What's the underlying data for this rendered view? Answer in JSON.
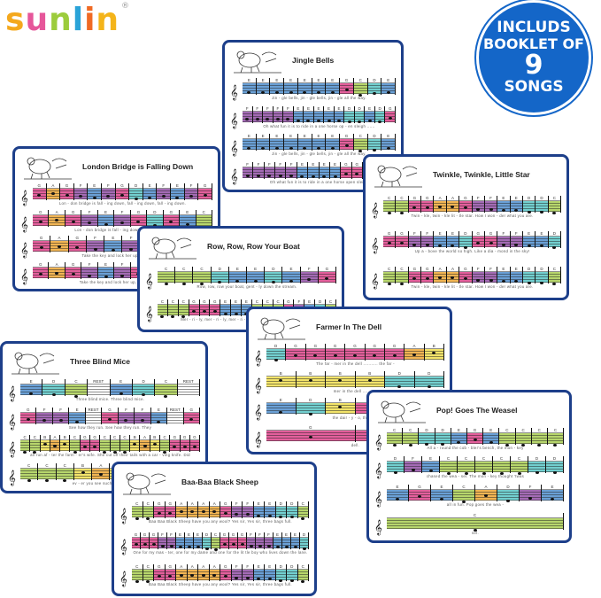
{
  "brand": {
    "letters": [
      "s",
      "u",
      "n",
      "l",
      "i",
      "n"
    ],
    "colors": [
      "#f4a81d",
      "#e6569a",
      "#9ccc3c",
      "#2aa3d8",
      "#f06a24",
      "#f4b41a"
    ],
    "registered": "®"
  },
  "badge": {
    "line1": "INCLUDS",
    "line2": "BOOKLET OF",
    "line3": "9",
    "line4": "SONGS",
    "color": "#1466c8"
  },
  "note_colors": {
    "C": "#b7d66c",
    "D": "#72cfcf",
    "E": "#6aa0d6",
    "F": "#a46bb5",
    "G": "#e45f9c",
    "A": "#f2b553",
    "B": "#f3e46a",
    "REST": "#ffffff"
  },
  "card_border_color": "#1d3f8a",
  "songs": [
    {
      "id": "jingle-bells",
      "title": "Jingle Bells",
      "illustration": "horse-sleigh",
      "rows": [
        {
          "notes": [
            "E",
            "E",
            "E",
            "E",
            "E",
            "E",
            "E",
            "G",
            "C",
            "D",
            "E"
          ],
          "lyrics": "Jin - gle  bells,  jin - gle  bells,  jin - gle  all  the  way."
        },
        {
          "notes": [
            "F",
            "F",
            "F",
            "F",
            "F",
            "E",
            "E",
            "E",
            "E",
            "E",
            "D",
            "D",
            "E",
            "D",
            "G"
          ],
          "lyrics": "Oh  what  fun  it  is  to  ride  in a  one  horse  op - en  sleigh ......"
        },
        {
          "notes": [
            "E",
            "E",
            "E",
            "E",
            "E",
            "E",
            "E",
            "G",
            "C",
            "D",
            "E"
          ],
          "lyrics": "Jin - gle  bells,  jin - gle  bells,  jin - gle  all  the  way."
        },
        {
          "notes": [
            "F",
            "F",
            "F",
            "F",
            "F",
            "E",
            "E",
            "E",
            "E",
            "G",
            "G",
            "F",
            "D",
            "C"
          ],
          "lyrics": "Oh  what  fun  it  is  to  ride  in a  one  horse  open  sleigh"
        }
      ]
    },
    {
      "id": "london-bridge",
      "title": "London Bridge is Falling Down",
      "illustration": "tower-bridge",
      "rows": [
        {
          "notes": [
            "G",
            "A",
            "G",
            "F",
            "E",
            "F",
            "G",
            "D",
            "E",
            "F",
            "E",
            "F",
            "G"
          ],
          "lyrics": "Lon - don  bridge  is  fall - ing  down,  fall - ing  down,  fall - ing  down."
        },
        {
          "notes": [
            "G",
            "A",
            "G",
            "F",
            "E",
            "F",
            "G",
            "D",
            "G",
            "E",
            "C"
          ],
          "lyrics": "Lon - don  bridge  is  fall - ing  down,  my  fair  la - dy."
        },
        {
          "notes": [
            "G",
            "A",
            "G",
            "F",
            "E",
            "F",
            "G",
            "D",
            "E",
            "F"
          ],
          "lyrics": "Take  the  key  and  lock  her  up,  lock  her  up,"
        },
        {
          "notes": [
            "G",
            "A",
            "G",
            "F",
            "E",
            "F",
            "G",
            "D",
            "G",
            "E",
            "C"
          ],
          "lyrics": "Take  the  key  and  lock  her  up,  my  fair  la - dy."
        }
      ]
    },
    {
      "id": "twinkle",
      "title": "Twinkle, Twinkle, Little Star",
      "illustration": "child-telescope",
      "rows": [
        {
          "notes": [
            "C",
            "C",
            "G",
            "G",
            "A",
            "A",
            "G",
            "F",
            "F",
            "E",
            "E",
            "D",
            "D",
            "C"
          ],
          "lyrics": "Twin - kle, twin - kle  lit - tle  star.  How  I  won - der  what  you  are."
        },
        {
          "notes": [
            "G",
            "G",
            "F",
            "F",
            "E",
            "E",
            "D",
            "G",
            "G",
            "F",
            "F",
            "E",
            "E",
            "D"
          ],
          "lyrics": "Up  a - bove  the  world  so  high.  Like  a  dia - mond  in  the  sky!"
        },
        {
          "notes": [
            "C",
            "C",
            "G",
            "G",
            "A",
            "A",
            "G",
            "F",
            "F",
            "E",
            "E",
            "D",
            "D",
            "C"
          ],
          "lyrics": "Twin - kle, twin - kle  lit - tle  star.  How  I  won - der  what  you  are."
        }
      ]
    },
    {
      "id": "row-your-boat",
      "title": "Row, Row, Row Your Boat",
      "illustration": "rower",
      "rows": [
        {
          "notes": [
            "C",
            "C",
            "C",
            "D",
            "E",
            "E",
            "D",
            "E",
            "F",
            "G"
          ],
          "lyrics": "Row,  row,  row  your  boat,  gent - ly  down  the  stream."
        },
        {
          "notes": [
            "C",
            "C",
            "C",
            "G",
            "G",
            "G",
            "E",
            "E",
            "E",
            "C",
            "C",
            "C",
            "G",
            "F",
            "E",
            "D",
            "C"
          ],
          "lyrics": "Mer - ri - ly,  mer - ri - ly,  mer - ri - ly,  mer - ri - ly,  life  is  but  a  dream."
        }
      ]
    },
    {
      "id": "farmer-in-the-dell",
      "title": "Farmer In The Dell",
      "illustration": "farmer-barn",
      "rows": [
        {
          "notes": [
            "D",
            "G",
            "G",
            "G",
            "G",
            "G",
            "G",
            "A",
            "B"
          ],
          "lyrics": "The  far - mer  in  the  dell ...........  the  far -"
        },
        {
          "notes": [
            "B",
            "B",
            "B",
            "B",
            "D",
            "D"
          ],
          "lyrics": "mer  in  the  dell ..........."
        },
        {
          "notes": [
            "E",
            "D",
            "B",
            "G",
            "A",
            "B"
          ],
          "lyrics": "the  dair - y - o,  the  far -"
        },
        {
          "notes": [
            "G",
            "G"
          ],
          "lyrics": "dell."
        }
      ]
    },
    {
      "id": "three-blind-mice",
      "title": "Three Blind Mice",
      "illustration": "three-mice",
      "rows": [
        {
          "notes": [
            "E",
            "D",
            "C",
            "REST",
            "E",
            "D",
            "C",
            "REST"
          ],
          "lyrics": "Three  blind  mice.  Three  blind  mice."
        },
        {
          "notes": [
            "G",
            "F",
            "F",
            "E",
            "REST",
            "G",
            "F",
            "F",
            "E",
            "REST",
            "G"
          ],
          "lyrics": "See  how  they  run.  See  how  they  run.  They"
        },
        {
          "notes": [
            "C",
            "C",
            "B",
            "A",
            "B",
            "C",
            "G",
            "G",
            "C",
            "C",
            "C",
            "B",
            "A",
            "B",
            "C",
            "G",
            "G",
            "G"
          ],
          "lyrics": "all  run  af - ter  the  farm - er's  wife.  She  cut  off  their  tails  with  a  car - ving  knife.  Did"
        },
        {
          "notes": [
            "C",
            "C",
            "C",
            "B",
            "A",
            "B",
            "C",
            "G",
            "G",
            "G"
          ],
          "lyrics": "ev - er  you  see  such  a  sight  in  your  life"
        }
      ]
    },
    {
      "id": "pop-goes-the-weasel",
      "title": "Pop! Goes The Weasel",
      "illustration": "monkey-weasel",
      "rows": [
        {
          "notes": [
            "C",
            "C",
            "D",
            "D",
            "E",
            "G",
            "E",
            "C",
            "C",
            "C",
            "C"
          ],
          "lyrics": "All  a - round  the  cob - bler's  bench,  the  mon - key"
        },
        {
          "notes": [
            "D",
            "F",
            "E",
            "C",
            "C",
            "C",
            "C",
            "C",
            "D",
            "D"
          ],
          "lyrics": "chased  the  wea - sel.  The  mon - key  thought  'twas"
        },
        {
          "notes": [
            "E",
            "G",
            "E",
            "C",
            "A",
            "D",
            "F",
            "E"
          ],
          "lyrics": "all  in  fun.  Pop  goes  the  wea -"
        },
        {
          "notes": [
            "C"
          ],
          "lyrics": "sel."
        }
      ]
    },
    {
      "id": "baa-baa-black-sheep",
      "title": "Baa-Baa Black Sheep",
      "illustration": "black-sheep",
      "rows": [
        {
          "notes": [
            "C",
            "C",
            "G",
            "G",
            "A",
            "A",
            "A",
            "A",
            "G",
            "F",
            "F",
            "E",
            "E",
            "D",
            "D",
            "C"
          ],
          "lyrics": "Baa  Baa  Black  Sheep  have you any  wool?  Yes  sir,  Yes  sir,  three  bags  full."
        },
        {
          "notes": [
            "G",
            "G",
            "G",
            "F",
            "F",
            "E",
            "E",
            "E",
            "D",
            "C",
            "G",
            "G",
            "G",
            "F",
            "F",
            "F",
            "E",
            "E",
            "E",
            "D"
          ],
          "lyrics": "One  for my  mas - ter,  one  for my  dame  and  one  for the lit tle boy who lives  down the  lane."
        },
        {
          "notes": [
            "C",
            "C",
            "G",
            "G",
            "A",
            "A",
            "A",
            "A",
            "G",
            "F",
            "F",
            "E",
            "E",
            "D",
            "D",
            "C"
          ],
          "lyrics": "Baa  Baa  Black  Sheep  have you any  wool?  Yes  sir,  Yes  sir,  three  bags  full."
        }
      ]
    }
  ]
}
